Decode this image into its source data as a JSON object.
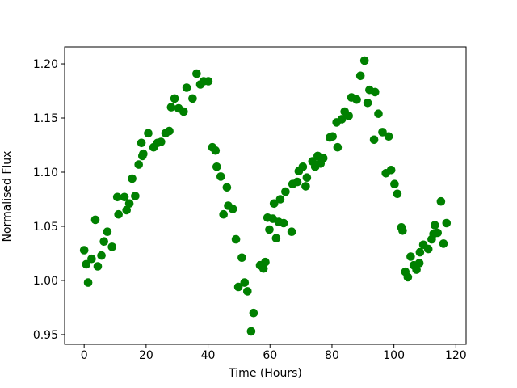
{
  "figure": {
    "background": "#ffffff"
  },
  "chart_data": {
    "type": "scatter",
    "title": "",
    "xlabel": "Time (Hours)",
    "ylabel": "Normalised Flux",
    "legend": null,
    "marker": {
      "shape": "circle",
      "color": "#008000",
      "radius_px": 5.3
    },
    "axes": {
      "xlim": [
        -6.3,
        123.3
      ],
      "ylim": [
        0.941,
        1.2157
      ],
      "grid": false,
      "spine_color": "#000000",
      "tick_color": "#000000"
    },
    "xticks": {
      "values": [
        0,
        20,
        40,
        60,
        80,
        100,
        120
      ],
      "labels": [
        "0",
        "20",
        "40",
        "60",
        "80",
        "100",
        "120"
      ]
    },
    "yticks": {
      "values": [
        0.95,
        1.0,
        1.05,
        1.1,
        1.15,
        1.2
      ],
      "labels": [
        "0.95",
        "1.00",
        "1.05",
        "1.10",
        "1.15",
        "1.20"
      ]
    },
    "points": [
      [
        0.0,
        1.028
      ],
      [
        0.7,
        1.015
      ],
      [
        1.3,
        0.998
      ],
      [
        2.4,
        1.02
      ],
      [
        3.6,
        1.056
      ],
      [
        4.4,
        1.013
      ],
      [
        5.6,
        1.023
      ],
      [
        6.4,
        1.036
      ],
      [
        7.5,
        1.045
      ],
      [
        9.0,
        1.031
      ],
      [
        10.7,
        1.077
      ],
      [
        11.1,
        1.061
      ],
      [
        13.0,
        1.077
      ],
      [
        13.7,
        1.065
      ],
      [
        14.6,
        1.071
      ],
      [
        15.5,
        1.094
      ],
      [
        16.5,
        1.078
      ],
      [
        17.6,
        1.107
      ],
      [
        18.5,
        1.127
      ],
      [
        18.8,
        1.115
      ],
      [
        19.1,
        1.117
      ],
      [
        20.7,
        1.136
      ],
      [
        22.4,
        1.123
      ],
      [
        23.7,
        1.127
      ],
      [
        24.8,
        1.128
      ],
      [
        26.3,
        1.136
      ],
      [
        27.5,
        1.138
      ],
      [
        28.1,
        1.16
      ],
      [
        29.2,
        1.168
      ],
      [
        30.5,
        1.159
      ],
      [
        32.1,
        1.156
      ],
      [
        33.1,
        1.178
      ],
      [
        35.0,
        1.168
      ],
      [
        36.3,
        1.191
      ],
      [
        37.5,
        1.181
      ],
      [
        38.6,
        1.184
      ],
      [
        40.1,
        1.184
      ],
      [
        41.4,
        1.123
      ],
      [
        42.4,
        1.12
      ],
      [
        42.8,
        1.105
      ],
      [
        44.1,
        1.096
      ],
      [
        45.0,
        1.061
      ],
      [
        46.1,
        1.086
      ],
      [
        46.5,
        1.069
      ],
      [
        48.0,
        1.066
      ],
      [
        49.0,
        1.038
      ],
      [
        49.8,
        0.994
      ],
      [
        50.9,
        1.021
      ],
      [
        51.8,
        0.998
      ],
      [
        52.7,
        0.99
      ],
      [
        53.9,
        0.953
      ],
      [
        54.7,
        0.97
      ],
      [
        56.8,
        1.014
      ],
      [
        57.9,
        1.011
      ],
      [
        58.5,
        1.017
      ],
      [
        59.2,
        1.058
      ],
      [
        59.8,
        1.047
      ],
      [
        60.9,
        1.057
      ],
      [
        61.3,
        1.071
      ],
      [
        62.0,
        1.039
      ],
      [
        62.8,
        1.054
      ],
      [
        63.3,
        1.075
      ],
      [
        64.4,
        1.053
      ],
      [
        65.0,
        1.082
      ],
      [
        67.0,
        1.045
      ],
      [
        67.3,
        1.089
      ],
      [
        68.8,
        1.091
      ],
      [
        69.3,
        1.101
      ],
      [
        70.6,
        1.105
      ],
      [
        71.5,
        1.087
      ],
      [
        71.9,
        1.095
      ],
      [
        73.7,
        1.11
      ],
      [
        74.6,
        1.105
      ],
      [
        75.4,
        1.115
      ],
      [
        76.3,
        1.108
      ],
      [
        77.2,
        1.113
      ],
      [
        79.3,
        1.132
      ],
      [
        80.2,
        1.133
      ],
      [
        81.5,
        1.146
      ],
      [
        81.8,
        1.123
      ],
      [
        83.2,
        1.149
      ],
      [
        84.1,
        1.156
      ],
      [
        85.4,
        1.152
      ],
      [
        86.3,
        1.169
      ],
      [
        88.0,
        1.167
      ],
      [
        89.2,
        1.189
      ],
      [
        90.5,
        1.203
      ],
      [
        91.5,
        1.164
      ],
      [
        92.1,
        1.176
      ],
      [
        93.6,
        1.13
      ],
      [
        93.9,
        1.174
      ],
      [
        95.0,
        1.154
      ],
      [
        96.3,
        1.137
      ],
      [
        97.4,
        1.099
      ],
      [
        98.3,
        1.133
      ],
      [
        99.1,
        1.102
      ],
      [
        100.2,
        1.089
      ],
      [
        101.1,
        1.08
      ],
      [
        102.4,
        1.049
      ],
      [
        102.8,
        1.046
      ],
      [
        103.7,
        1.008
      ],
      [
        104.5,
        1.003
      ],
      [
        105.4,
        1.022
      ],
      [
        106.4,
        1.014
      ],
      [
        107.3,
        1.01
      ],
      [
        108.2,
        1.016
      ],
      [
        108.4,
        1.026
      ],
      [
        109.5,
        1.033
      ],
      [
        111.1,
        1.029
      ],
      [
        112.2,
        1.038
      ],
      [
        112.8,
        1.043
      ],
      [
        113.2,
        1.051
      ],
      [
        114.1,
        1.044
      ],
      [
        115.2,
        1.073
      ],
      [
        116.0,
        1.034
      ],
      [
        117.0,
        1.053
      ]
    ]
  }
}
